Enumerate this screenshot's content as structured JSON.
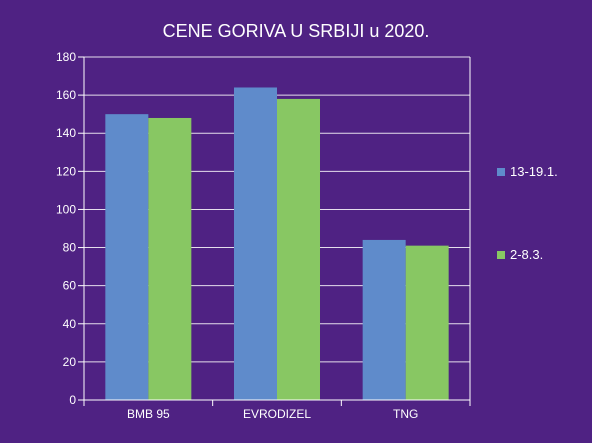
{
  "colors": {
    "background": "#4f2283",
    "text": "#ffffff",
    "gridline": "#ffffff",
    "series_1": "#5f8bcb",
    "series_2": "#88c763"
  },
  "chart_data": {
    "type": "bar",
    "title": "CENE GORIVA U SRBIJI u 2020.",
    "xlabel": "",
    "ylabel": "",
    "categories": [
      "BMB 95",
      "EVRODIZEL",
      "TNG"
    ],
    "series": [
      {
        "name": "13-19.1.",
        "values": [
          150,
          164,
          84
        ]
      },
      {
        "name": "2-8.3.",
        "values": [
          148,
          158,
          81
        ]
      }
    ],
    "ylim": [
      0,
      180
    ],
    "yticks": [
      0,
      20,
      40,
      60,
      80,
      100,
      120,
      140,
      160,
      180
    ],
    "grid": true,
    "legend_position": "right"
  }
}
